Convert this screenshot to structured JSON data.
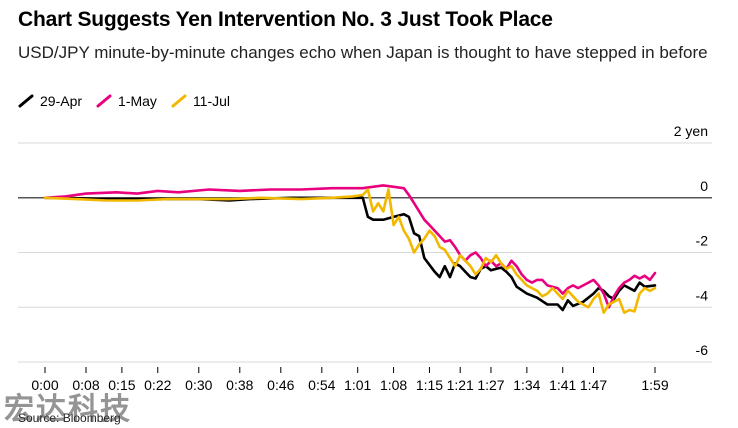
{
  "title": "Chart Suggests Yen Intervention No. 3 Just Took Place",
  "subtitle": "USD/JPY minute-by-minute changes echo when Japan is thought to have stepped in before",
  "source": "Source: Bloomberg",
  "watermark": "宏达科技",
  "chart_data": {
    "type": "line",
    "y_unit_label": "2 yen",
    "ylim": [
      -6,
      2
    ],
    "y_ticks": [
      2,
      0,
      -2,
      -4,
      -6
    ],
    "y_tick_labels": [
      "2 yen",
      "0",
      "-2",
      "-4",
      "-6"
    ],
    "x_ticks": [
      "0:00",
      "0:08",
      "0:15",
      "0:22",
      "0:30",
      "0:38",
      "0:46",
      "0:54",
      "1:01",
      "1:08",
      "1:15",
      "1:21",
      "1:27",
      "1:34",
      "1:41",
      "1:47",
      "1:59"
    ],
    "xlim_minutes": [
      0,
      119
    ],
    "legend_position": "top-left",
    "grid": "horizontal",
    "series": [
      {
        "name": "29-Apr",
        "color": "#000000",
        "points": [
          [
            0,
            0
          ],
          [
            4,
            0
          ],
          [
            10,
            -0.05
          ],
          [
            20,
            -0.05
          ],
          [
            30,
            -0.05
          ],
          [
            36,
            -0.1
          ],
          [
            40,
            -0.05
          ],
          [
            48,
            0
          ],
          [
            56,
            0
          ],
          [
            62,
            0
          ],
          [
            63,
            -0.7
          ],
          [
            64,
            -0.8
          ],
          [
            66,
            -0.8
          ],
          [
            68,
            -0.7
          ],
          [
            70,
            -0.6
          ],
          [
            71,
            -0.7
          ],
          [
            72,
            -1.3
          ],
          [
            73,
            -1.4
          ],
          [
            74,
            -2.2
          ],
          [
            76,
            -2.7
          ],
          [
            77,
            -2.9
          ],
          [
            78,
            -2.5
          ],
          [
            79,
            -2.9
          ],
          [
            80,
            -2.4
          ],
          [
            81,
            -2.5
          ],
          [
            82,
            -2.7
          ],
          [
            83,
            -2.9
          ],
          [
            84,
            -2.95
          ],
          [
            85,
            -2.6
          ],
          [
            86,
            -2.5
          ],
          [
            87,
            -2.65
          ],
          [
            88,
            -2.6
          ],
          [
            89,
            -2.55
          ],
          [
            90,
            -2.7
          ],
          [
            91,
            -2.9
          ],
          [
            92,
            -3.25
          ],
          [
            94,
            -3.5
          ],
          [
            96,
            -3.65
          ],
          [
            98,
            -3.9
          ],
          [
            100,
            -3.9
          ],
          [
            101,
            -4.1
          ],
          [
            102,
            -3.75
          ],
          [
            103,
            -3.95
          ],
          [
            105,
            -3.8
          ],
          [
            107,
            -3.5
          ],
          [
            108,
            -3.3
          ],
          [
            109,
            -3.4
          ],
          [
            110,
            -3.6
          ],
          [
            111,
            -3.7
          ],
          [
            112,
            -3.4
          ],
          [
            113,
            -3.2
          ],
          [
            114,
            -3.3
          ],
          [
            115,
            -3.4
          ],
          [
            116,
            -3.1
          ],
          [
            117,
            -3.25
          ],
          [
            119,
            -3.2
          ]
        ]
      },
      {
        "name": "1-May",
        "color": "#e8007e",
        "points": [
          [
            0,
            0
          ],
          [
            4,
            0.05
          ],
          [
            8,
            0.15
          ],
          [
            14,
            0.2
          ],
          [
            18,
            0.15
          ],
          [
            22,
            0.25
          ],
          [
            26,
            0.2
          ],
          [
            32,
            0.3
          ],
          [
            38,
            0.25
          ],
          [
            44,
            0.3
          ],
          [
            50,
            0.3
          ],
          [
            56,
            0.35
          ],
          [
            62,
            0.35
          ],
          [
            66,
            0.45
          ],
          [
            68,
            0.4
          ],
          [
            70,
            0.35
          ],
          [
            71,
            0.1
          ],
          [
            72,
            -0.2
          ],
          [
            73,
            -0.5
          ],
          [
            74,
            -0.8
          ],
          [
            75,
            -1
          ],
          [
            76,
            -1.2
          ],
          [
            77,
            -1.4
          ],
          [
            78,
            -1.6
          ],
          [
            79,
            -1.55
          ],
          [
            80,
            -1.8
          ],
          [
            81,
            -2.1
          ],
          [
            82,
            -2.3
          ],
          [
            83,
            -2.1
          ],
          [
            84,
            -2.0
          ],
          [
            85,
            -2.2
          ],
          [
            86,
            -2.5
          ],
          [
            87,
            -2.3
          ],
          [
            88,
            -2.5
          ],
          [
            89,
            -2.4
          ],
          [
            90,
            -2.6
          ],
          [
            91,
            -2.3
          ],
          [
            92,
            -2.5
          ],
          [
            93,
            -2.8
          ],
          [
            94,
            -3.0
          ],
          [
            95,
            -3.1
          ],
          [
            96,
            -3.0
          ],
          [
            97,
            -3.0
          ],
          [
            98,
            -3.2
          ],
          [
            100,
            -3.3
          ],
          [
            101,
            -3.5
          ],
          [
            102,
            -3.3
          ],
          [
            103,
            -3.2
          ],
          [
            104,
            -3.3
          ],
          [
            106,
            -3.1
          ],
          [
            107,
            -3.0
          ],
          [
            108,
            -3.2
          ],
          [
            109,
            -3.5
          ],
          [
            110,
            -4.0
          ],
          [
            111,
            -3.6
          ],
          [
            112,
            -3.3
          ],
          [
            113,
            -3.1
          ],
          [
            114,
            -3.0
          ],
          [
            115,
            -2.85
          ],
          [
            116,
            -2.95
          ],
          [
            117,
            -2.85
          ],
          [
            118,
            -3.0
          ],
          [
            119,
            -2.75
          ]
        ]
      },
      {
        "name": "11-Jul",
        "color": "#f2b800",
        "points": [
          [
            0,
            0
          ],
          [
            6,
            -0.05
          ],
          [
            12,
            -0.1
          ],
          [
            18,
            -0.1
          ],
          [
            24,
            -0.05
          ],
          [
            30,
            -0.05
          ],
          [
            36,
            -0.05
          ],
          [
            42,
            0
          ],
          [
            50,
            -0.05
          ],
          [
            56,
            0
          ],
          [
            60,
            0.05
          ],
          [
            62,
            0.1
          ],
          [
            63,
            0.3
          ],
          [
            64,
            -0.5
          ],
          [
            65,
            -0.2
          ],
          [
            66,
            -0.5
          ],
          [
            67,
            0.3
          ],
          [
            68,
            -1.0
          ],
          [
            69,
            -0.7
          ],
          [
            70,
            -1.2
          ],
          [
            71,
            -1.5
          ],
          [
            72,
            -2.0
          ],
          [
            73,
            -1.7
          ],
          [
            74,
            -1.5
          ],
          [
            75,
            -1.2
          ],
          [
            76,
            -1.4
          ],
          [
            77,
            -1.8
          ],
          [
            78,
            -1.9
          ],
          [
            79,
            -2.2
          ],
          [
            80,
            -2.5
          ],
          [
            81,
            -2.1
          ],
          [
            82,
            -2.3
          ],
          [
            83,
            -2.5
          ],
          [
            84,
            -2.8
          ],
          [
            85,
            -2.6
          ],
          [
            86,
            -2.2
          ],
          [
            87,
            -2.35
          ],
          [
            88,
            -2.1
          ],
          [
            89,
            -2.4
          ],
          [
            90,
            -2.6
          ],
          [
            91,
            -2.5
          ],
          [
            92,
            -2.8
          ],
          [
            93,
            -3.0
          ],
          [
            94,
            -3.2
          ],
          [
            95,
            -3.3
          ],
          [
            96,
            -3.4
          ],
          [
            97,
            -3.6
          ],
          [
            98,
            -3.5
          ],
          [
            99,
            -3.3
          ],
          [
            100,
            -3.5
          ],
          [
            101,
            -3.7
          ],
          [
            102,
            -3.4
          ],
          [
            103,
            -3.6
          ],
          [
            104,
            -3.8
          ],
          [
            105,
            -3.9
          ],
          [
            106,
            -4.0
          ],
          [
            107,
            -3.7
          ],
          [
            108,
            -3.5
          ],
          [
            109,
            -4.2
          ],
          [
            110,
            -3.9
          ],
          [
            111,
            -3.8
          ],
          [
            112,
            -3.7
          ],
          [
            113,
            -4.2
          ],
          [
            114,
            -4.1
          ],
          [
            115,
            -4.15
          ],
          [
            116,
            -3.5
          ],
          [
            117,
            -3.3
          ],
          [
            118,
            -3.4
          ],
          [
            119,
            -3.3
          ]
        ]
      }
    ]
  }
}
